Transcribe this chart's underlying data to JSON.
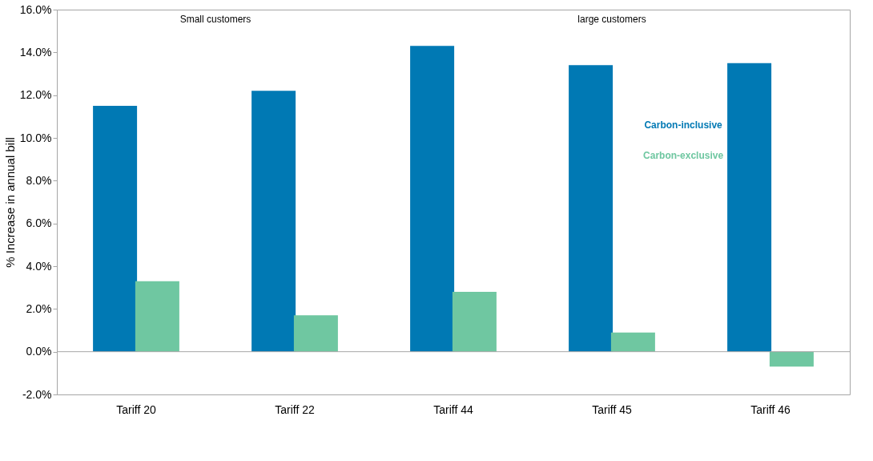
{
  "chart_data": {
    "type": "bar",
    "ylabel": "% Increase in annual bill",
    "categories": [
      "Tariff 20",
      "Tariff 22",
      "Tariff 44",
      "Tariff 45",
      "Tariff 46"
    ],
    "series": [
      {
        "name": "Carbon-inclusive",
        "color": "#0079b4",
        "values": [
          11.5,
          12.2,
          14.3,
          13.4,
          13.5
        ]
      },
      {
        "name": "Carbon-exclusive",
        "color": "#6fc7a1",
        "values": [
          3.3,
          1.7,
          2.8,
          0.9,
          -0.7
        ]
      }
    ],
    "ylim": [
      -2,
      16
    ],
    "yticks": [
      {
        "value": -2,
        "label": "-2.0%"
      },
      {
        "value": 0,
        "label": "0.0%"
      },
      {
        "value": 2,
        "label": "2.0%"
      },
      {
        "value": 4,
        "label": "4.0%"
      },
      {
        "value": 6,
        "label": "6.0%"
      },
      {
        "value": 8,
        "label": "8.0%"
      },
      {
        "value": 10,
        "label": "10.0%"
      },
      {
        "value": 12,
        "label": "12.0%"
      },
      {
        "value": 14,
        "label": "14.0%"
      },
      {
        "value": 16,
        "label": "16.0%"
      }
    ],
    "ref_lines": [
      {
        "axis": "y",
        "value": 0,
        "color": "#a6a6a6"
      }
    ],
    "annotations": [
      "Small customers",
      "large customers"
    ],
    "legend": "right",
    "grid": false
  }
}
